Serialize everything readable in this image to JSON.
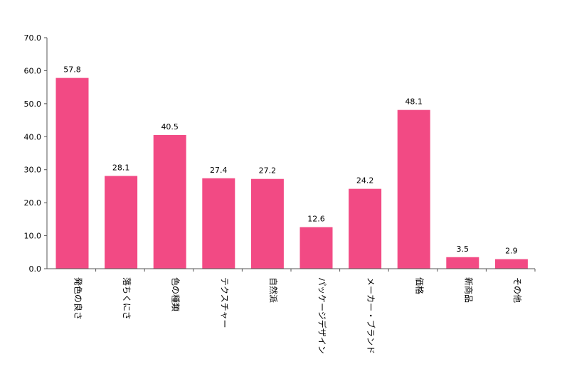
{
  "chart_data": {
    "type": "bar",
    "categories": [
      "発色の良さ",
      "落ちくにさ",
      "色の種類",
      "テクスチャー",
      "自然派",
      "パッケージデザイン",
      "メーカー・ブランド",
      "価格",
      "新商品",
      "その他"
    ],
    "values": [
      57.8,
      28.1,
      40.5,
      27.4,
      27.2,
      12.6,
      24.2,
      48.1,
      3.5,
      2.9
    ],
    "value_labels": [
      "57.8",
      "28.1",
      "40.5",
      "27.4",
      "27.2",
      "12.6",
      "24.2",
      "48.1",
      "3.5",
      "2.9"
    ],
    "y_ticks": [
      "0.0",
      "10.0",
      "20.0",
      "30.0",
      "40.0",
      "50.0",
      "60.0",
      "70.0"
    ],
    "ylim": [
      0,
      70
    ],
    "bar_color": "#f24a84",
    "grid": false,
    "legend": "none",
    "title": "",
    "xlabel": "",
    "ylabel": ""
  }
}
